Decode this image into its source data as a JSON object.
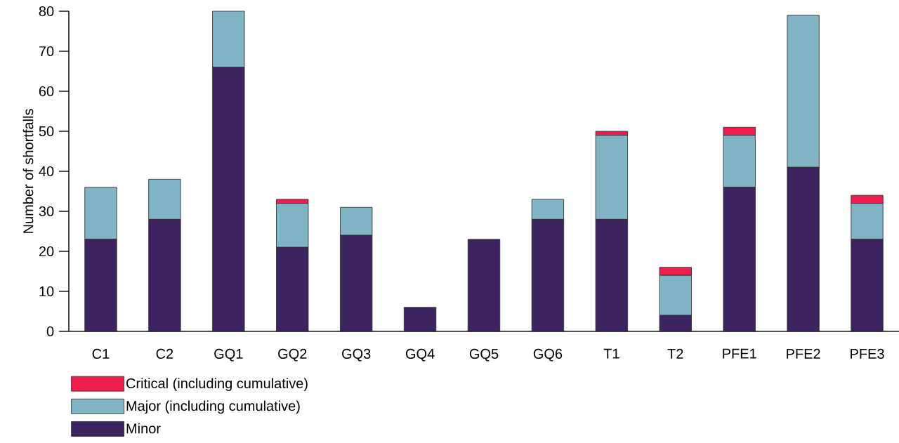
{
  "chart_data": {
    "type": "bar",
    "stacked": true,
    "ylabel": "Number of shortfalls",
    "categories": [
      "C1",
      "C2",
      "GQ1",
      "GQ2",
      "GQ3",
      "GQ4",
      "GQ5",
      "GQ6",
      "T1",
      "T2",
      "PFE1",
      "PFE2",
      "PFE3"
    ],
    "series": [
      {
        "name": "Minor",
        "color": "#3d2460",
        "values": [
          23,
          28,
          66,
          21,
          24,
          6,
          23,
          28,
          28,
          4,
          36,
          41,
          23
        ]
      },
      {
        "name": "Major (including cumulative)",
        "color": "#80b3c4",
        "values": [
          13,
          10,
          14,
          11,
          7,
          0,
          0,
          5,
          21,
          10,
          13,
          38,
          9
        ]
      },
      {
        "name": "Critical (including cumulative)",
        "color": "#ee1f4f",
        "values": [
          0,
          0,
          0,
          1,
          0,
          0,
          0,
          0,
          1,
          2,
          2,
          0,
          2
        ]
      }
    ],
    "ylim": [
      0,
      80
    ],
    "yticks": [
      0,
      10,
      20,
      30,
      40,
      50,
      60,
      70,
      80
    ],
    "grid": false,
    "legend": "bottom left"
  }
}
